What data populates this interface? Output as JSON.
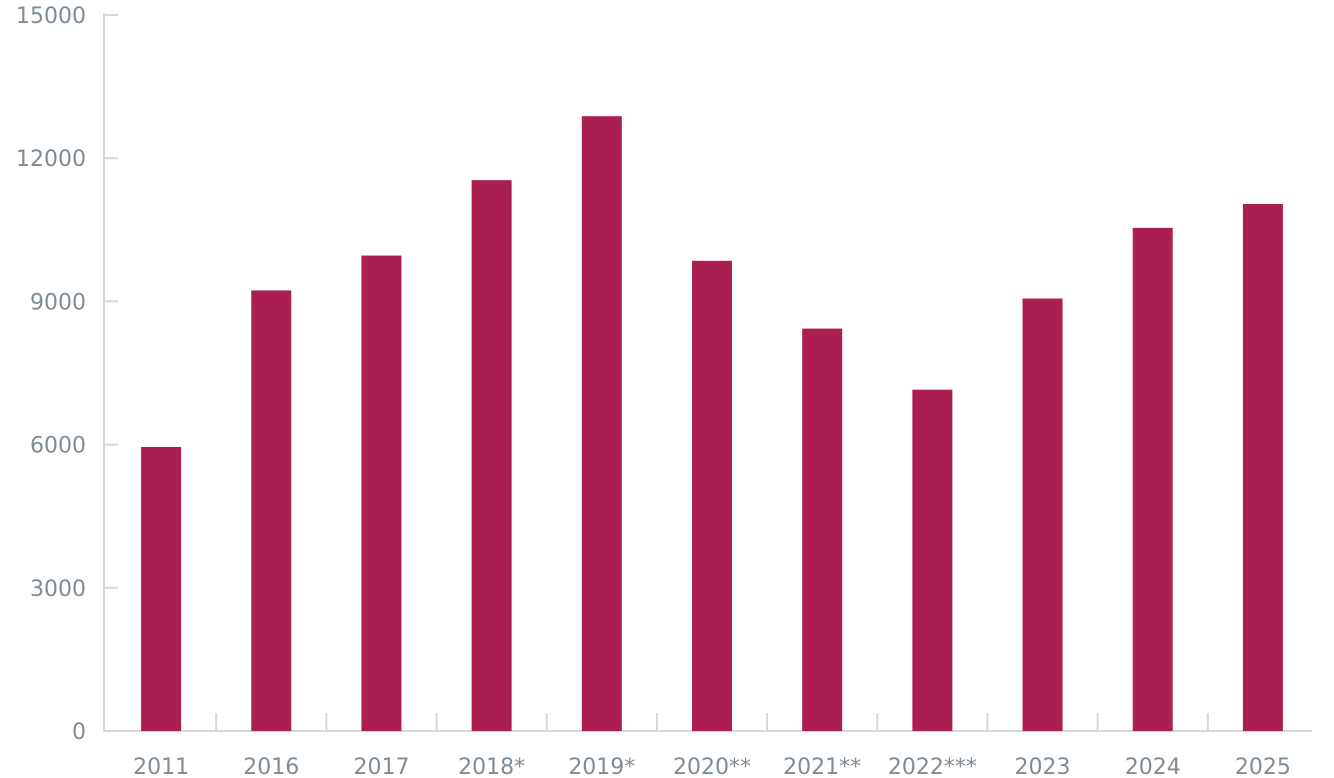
{
  "chart_data": {
    "type": "bar",
    "categories": [
      "2011",
      "2016",
      "2017",
      "2018*",
      "2019*",
      "2020**",
      "2021**",
      "2022***",
      "2023",
      "2024",
      "2025"
    ],
    "values": [
      5950,
      9230,
      9960,
      11540,
      12880,
      9850,
      8430,
      7150,
      9060,
      10540,
      11040
    ],
    "ylim": [
      0,
      15000
    ],
    "yticks": [
      0,
      3000,
      6000,
      9000,
      12000,
      15000
    ],
    "grid": false,
    "bar_color": "#ab1e52",
    "axis_color": "#d4d8dc",
    "label_color": "#7f8c96"
  }
}
